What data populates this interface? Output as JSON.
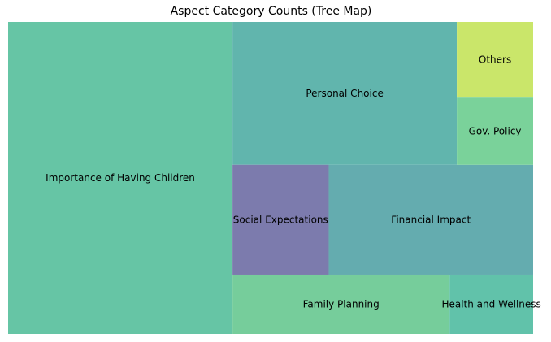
{
  "chart_data": {
    "type": "treemap",
    "title": "Aspect Category Counts (Tree Map)",
    "items": [
      {
        "label": "Importance of Having Children",
        "value": 42.4,
        "color": "#66c5a5"
      },
      {
        "label": "Personal Choice",
        "value": 19.4,
        "color": "#61b5ad"
      },
      {
        "label": "Social Expectations",
        "value": 6.4,
        "color": "#7c7bad"
      },
      {
        "label": "Financial Impact",
        "value": 13.6,
        "color": "#64acaf"
      },
      {
        "label": "Family Planning",
        "value": 7.8,
        "color": "#76cd9b"
      },
      {
        "label": "Health and Wellness",
        "value": 3.0,
        "color": "#61c2aa"
      },
      {
        "label": "Others",
        "value": 3.5,
        "color": "#cae66a"
      },
      {
        "label": "Gov. Policy",
        "value": 3.1,
        "color": "#7ad29a"
      }
    ]
  }
}
